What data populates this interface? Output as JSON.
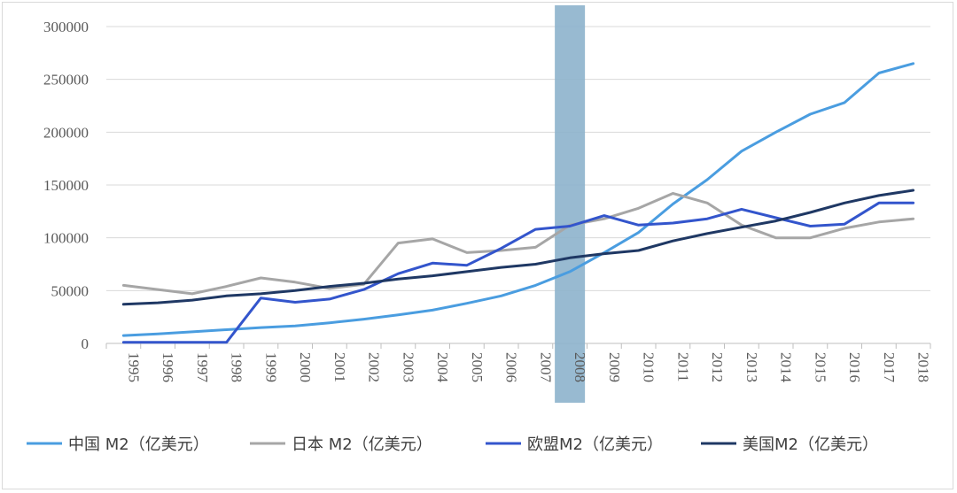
{
  "chart_data": {
    "type": "line",
    "title": "",
    "xlabel": "",
    "ylabel": "",
    "x": [
      "1995",
      "1996",
      "1997",
      "1998",
      "1999",
      "2000",
      "2001",
      "2002",
      "2003",
      "2004",
      "2005",
      "2006",
      "2007",
      "2008",
      "2009",
      "2010",
      "2011",
      "2012",
      "2013",
      "2014",
      "2015",
      "2016",
      "2017",
      "2018"
    ],
    "ylim": [
      0,
      300000
    ],
    "yticks": [
      "0",
      "50000",
      "100000",
      "150000",
      "200000",
      "250000",
      "300000"
    ],
    "grid": true,
    "legend_position": "bottom",
    "highlight_category": "2008",
    "highlight_color": "#8db3cc",
    "series": [
      {
        "name": "中国 M2（亿美元）",
        "color": "#4a9de0",
        "values": [
          7500,
          9000,
          11000,
          13000,
          15000,
          16500,
          19500,
          23000,
          27000,
          31500,
          38000,
          45000,
          55000,
          68000,
          86000,
          105000,
          132000,
          155000,
          182000,
          200000,
          217000,
          228000,
          256000,
          265000
        ]
      },
      {
        "name": "日本 M2（亿美元）",
        "color": "#a6a6a6",
        "values": [
          55000,
          51000,
          47000,
          54000,
          62000,
          58000,
          52000,
          56000,
          95000,
          99000,
          86000,
          88000,
          91000,
          112000,
          118000,
          128000,
          142000,
          133000,
          112000,
          100000,
          100000,
          109000,
          115000,
          118000
        ]
      },
      {
        "name": "欧盟M2（亿美元）",
        "color": "#3355cc",
        "values": [
          1000,
          1000,
          1000,
          1000,
          43000,
          39000,
          42000,
          51000,
          66000,
          76000,
          74000,
          90000,
          108000,
          111000,
          121000,
          112000,
          114000,
          118000,
          127000,
          119000,
          111000,
          113000,
          133000,
          133000
        ]
      },
      {
        "name": "美国M2（亿美元）",
        "color": "#1f3864",
        "values": [
          37000,
          38500,
          41000,
          45000,
          47000,
          50000,
          54000,
          57000,
          61000,
          64000,
          68000,
          72000,
          75000,
          81000,
          85000,
          88000,
          97000,
          104000,
          110000,
          116000,
          124000,
          133000,
          140000,
          145000
        ]
      }
    ]
  }
}
